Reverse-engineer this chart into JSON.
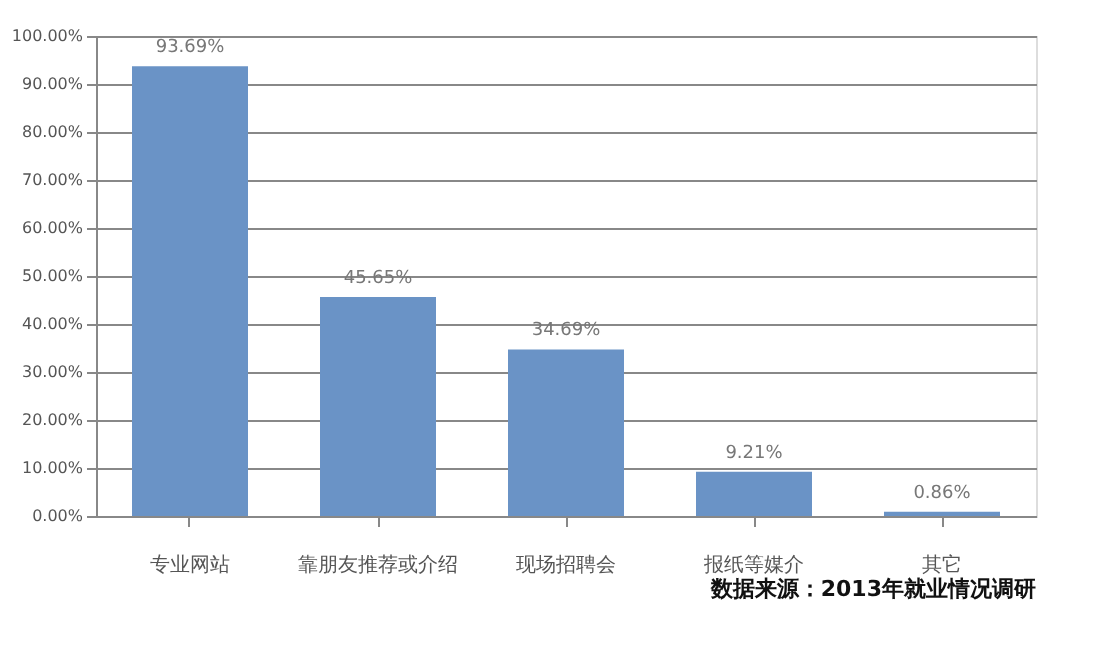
{
  "chart_data": {
    "type": "bar",
    "categories": [
      "专业网站",
      "靠朋友推荐或介绍",
      "现场招聘会",
      "报纸等媒介",
      "其它"
    ],
    "values": [
      93.69,
      45.65,
      34.69,
      9.21,
      0.86
    ],
    "value_labels": [
      "93.69%",
      "45.65%",
      "34.69%",
      "9.21%",
      "0.86%"
    ],
    "color": "#6a93c6",
    "ylim": [
      0,
      100
    ],
    "yticks": [
      {
        "value": 0,
        "label": "0.00%"
      },
      {
        "value": 10,
        "label": "10.00%"
      },
      {
        "value": 20,
        "label": "20.00%"
      },
      {
        "value": 30,
        "label": "30.00%"
      },
      {
        "value": 40,
        "label": "40.00%"
      },
      {
        "value": 50,
        "label": "50.00%"
      },
      {
        "value": 60,
        "label": "60.00%"
      },
      {
        "value": 70,
        "label": "70.00%"
      },
      {
        "value": 80,
        "label": "80.00%"
      },
      {
        "value": 90,
        "label": "90.00%"
      },
      {
        "value": 100,
        "label": "100.00%"
      }
    ],
    "grid": "y",
    "annotations": [
      "数据来源：2013年就业情况调研"
    ]
  }
}
